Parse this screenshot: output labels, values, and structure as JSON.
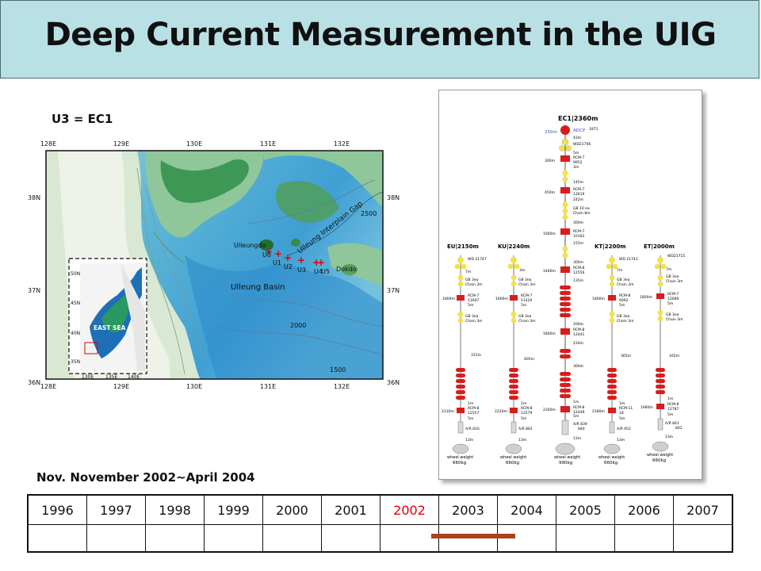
{
  "title": "Deep Current Measurement in the UIG",
  "captions": {
    "equivalence": "U3 = EC1",
    "period": "Nov. November 2002~April 2004"
  },
  "colors": {
    "title_bg": "#b9e0e5",
    "highlight_year": "#e3000f",
    "period_bar": "#a9441a",
    "mooring_float": "#f2e24a",
    "mooring_instrument": "#d81d1d"
  },
  "map": {
    "lon_ticks": [
      "128E",
      "129E",
      "130E",
      "131E",
      "132E"
    ],
    "lat_ticks": [
      "38N",
      "37N",
      "36N"
    ],
    "place_labels": {
      "island1": "Ulleungdo",
      "island2": "Dokdo",
      "basin": "Ulleung Basin",
      "gap": "Ulleung Interplain Gap"
    },
    "stations": [
      "U0",
      "U1",
      "U2",
      "U3",
      "U4",
      "U5"
    ],
    "contours": [
      "2500",
      "2000",
      "1500"
    ],
    "inset": {
      "sea_label": "EAST SEA",
      "lat_ticks": [
        "50N",
        "45N",
        "40N",
        "35N"
      ],
      "lon_ticks": [
        "130E",
        "135E",
        "140E"
      ]
    }
  },
  "moorings": [
    {
      "name": "EC1|2360m",
      "depths": [
        "250m",
        "43m",
        "5m",
        "300m",
        "3m",
        "145m",
        "450m",
        "242m",
        "300m",
        "1000m",
        "155m",
        "300m",
        "1460m",
        "135m",
        "200m",
        "1800m",
        "234m",
        "300m",
        "1m",
        "2340m",
        "5m",
        "13m"
      ],
      "instruments": [
        "ADCP",
        "WD21706",
        "RCM-7",
        "9952",
        "RCM-7",
        "12619",
        "GB 10 ea",
        "Chain 8m",
        "RCM-7",
        "10162",
        "RCM-8",
        "12556",
        "RCM-8",
        "12441",
        "RCM-8",
        "12449",
        "A/R 839",
        "840",
        "1871"
      ],
      "weight": "990kg"
    },
    {
      "name": "EU|2150m",
      "depths": [
        "7m",
        "5m",
        "1800m",
        "315m",
        "1m",
        "2130m",
        "5m",
        "13m"
      ],
      "instruments": [
        "WD 21747",
        "GB 3ea",
        "Chain 3m",
        "RCM-7",
        "11607",
        "GB 3ea",
        "Chain 3m",
        "RCM-8",
        "12557",
        "A/R 816"
      ],
      "weight": "660kg"
    },
    {
      "name": "KU|2240m",
      "depths": [
        "3m",
        "1800m",
        "5m",
        "405m",
        "1m",
        "2220m",
        "5m",
        "13m"
      ],
      "instruments": [
        "GB 3ea",
        "Chain 3m",
        "RCM-7",
        "11420",
        "GB 3ea",
        "Chain 3m",
        "RCM-8",
        "12579",
        "A/R 881"
      ],
      "weight": "660kg"
    },
    {
      "name": "KT|2200m",
      "depths": [
        "7m",
        "1800m",
        "5m",
        "365m",
        "1m",
        "2180m",
        "5m",
        "13m"
      ],
      "instruments": [
        "WD 21741",
        "GB 3ea",
        "Chain 3m",
        "RCM-8",
        "9092",
        "GB 3ea",
        "Chain 3m",
        "RCM-11",
        "18",
        "A/R 952"
      ],
      "weight": "660kg"
    },
    {
      "name": "ET|2000m",
      "depths": [
        "7m",
        "1800m",
        "5m",
        "165m",
        "1m",
        "1980m",
        "5m",
        "13m"
      ],
      "instruments": [
        "WD21715",
        "GB 3ea",
        "Chain 3m",
        "RCM-7",
        "12680",
        "GB 3ea",
        "Chain 3m",
        "RCM-8",
        "12787",
        "A/R 841",
        "842"
      ],
      "weight": "660kg"
    }
  ],
  "mooring_footer": "wheel weight",
  "timeline": {
    "years": [
      "1996",
      "1997",
      "1998",
      "1999",
      "2000",
      "2001",
      "2002",
      "2003",
      "2004",
      "2005",
      "2006",
      "2007"
    ],
    "highlight": "2002",
    "period_start": 2002.83,
    "period_end": 2004.25
  }
}
